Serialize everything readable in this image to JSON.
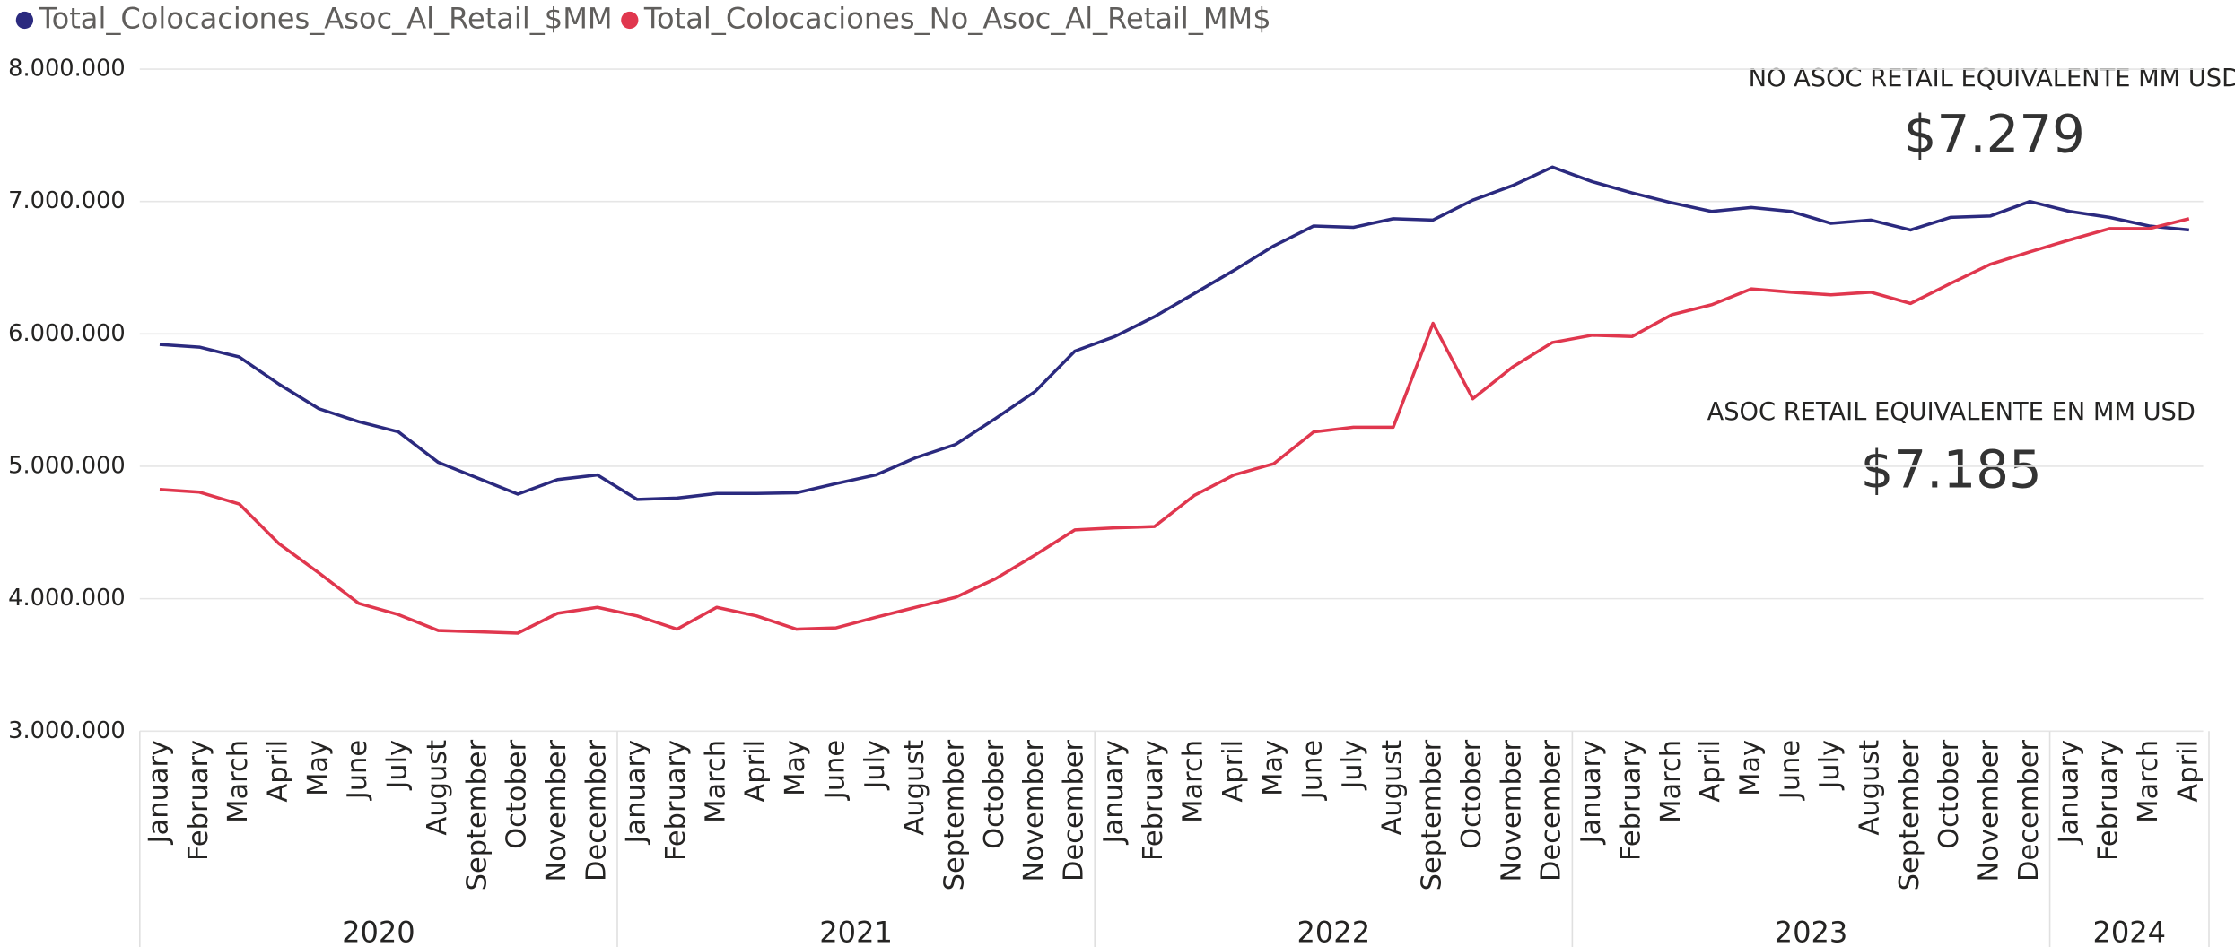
{
  "chart_data": {
    "type": "line",
    "categories": [
      "January",
      "February",
      "March",
      "April",
      "May",
      "June",
      "July",
      "August",
      "September",
      "October",
      "November",
      "December",
      "January",
      "February",
      "March",
      "April",
      "May",
      "June",
      "July",
      "August",
      "September",
      "October",
      "November",
      "December",
      "January",
      "February",
      "March",
      "April",
      "May",
      "June",
      "July",
      "August",
      "September",
      "October",
      "November",
      "December",
      "January",
      "February",
      "March",
      "April",
      "May",
      "June",
      "July",
      "August",
      "September",
      "October",
      "November",
      "December",
      "January",
      "February",
      "March",
      "April"
    ],
    "years": [
      "2020",
      "2021",
      "2022",
      "2023",
      "2024"
    ],
    "series": [
      {
        "name": "Total_Colocaciones_Asoc_Al_Retail_$MM",
        "color": "#2b2a7f",
        "values": [
          5920000,
          5900000,
          5826000,
          5620000,
          5435000,
          5337000,
          5260000,
          5030000,
          4910000,
          4790000,
          4900000,
          4935000,
          4750000,
          4760000,
          4795000,
          4795000,
          4800000,
          4870000,
          4935000,
          5065000,
          5165000,
          5360000,
          5565000,
          5870000,
          5980000,
          6130000,
          6305000,
          6480000,
          6665000,
          6815000,
          6805000,
          6870000,
          6860000,
          7010000,
          7120000,
          7260000,
          7150000,
          7065000,
          6990000,
          6925000,
          6955000,
          6925000,
          6835000,
          6860000,
          6785000,
          6880000,
          6890000,
          7000000,
          6925000,
          6880000,
          6815000,
          6785000
        ]
      },
      {
        "name": "Total_Colocaciones_No_Asoc_Al_Retail_MM$",
        "color": "#e0374e",
        "values": [
          4825000,
          4805000,
          4715000,
          4415000,
          4195000,
          3965000,
          3880000,
          3760000,
          3750000,
          3740000,
          3890000,
          3935000,
          3870000,
          3770000,
          3935000,
          3870000,
          3770000,
          3780000,
          3860000,
          3935000,
          4010000,
          4150000,
          4330000,
          4520000,
          4535000,
          4545000,
          4780000,
          4935000,
          5020000,
          5260000,
          5295000,
          5295000,
          6080000,
          5510000,
          5750000,
          5935000,
          5990000,
          5980000,
          6145000,
          6220000,
          6340000,
          6315000,
          6295000,
          6315000,
          6230000,
          6380000,
          6525000,
          6620000,
          6710000,
          6795000,
          6795000,
          6870000
        ]
      }
    ],
    "ylim": [
      3000000,
      8000000
    ],
    "yticks": [
      {
        "value": 3000000,
        "label": "3.000.000"
      },
      {
        "value": 4000000,
        "label": "4.000.000"
      },
      {
        "value": 5000000,
        "label": "5.000.000"
      },
      {
        "value": 6000000,
        "label": "6.000.000"
      },
      {
        "value": 7000000,
        "label": "7.000.000"
      },
      {
        "value": 8000000,
        "label": "8.000.000"
      }
    ],
    "grid": true,
    "annotations": [
      {
        "label": "NO ASOC RETAIL EQUIVALENTE MM USD",
        "value": "$7.279"
      },
      {
        "label": "ASOC RETAIL EQUIVALENTE EN MM USD",
        "value": "$7.185"
      }
    ]
  }
}
